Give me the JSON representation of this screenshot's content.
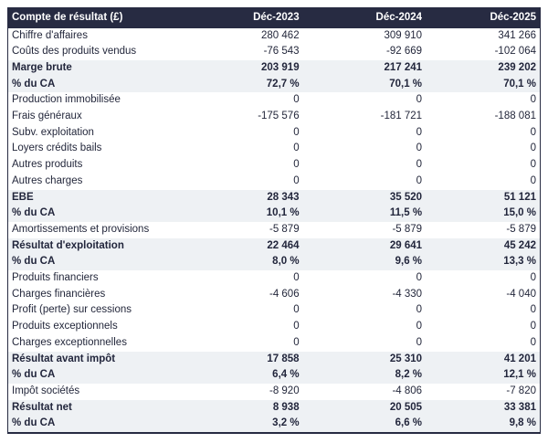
{
  "chart_data": {
    "type": "table",
    "title": "Compte de résultat (£)",
    "columns": [
      "Déc-2023",
      "Déc-2024",
      "Déc-2025"
    ],
    "rows": [
      {
        "label": "Chiffre d'affaires",
        "values": [
          "280 462",
          "309 910",
          "341 266"
        ],
        "emphasis": "normal"
      },
      {
        "label": "Coûts des produits vendus",
        "values": [
          "-76 543",
          "-92 669",
          "-102 064"
        ],
        "emphasis": "normal"
      },
      {
        "label": "Marge brute",
        "values": [
          "203 919",
          "217 241",
          "239 202"
        ],
        "emphasis": "subtotal"
      },
      {
        "label": "% du CA",
        "values": [
          "72,7 %",
          "70,1 %",
          "70,1 %"
        ],
        "emphasis": "subtotal"
      },
      {
        "label": "Production immobilisée",
        "values": [
          "0",
          "0",
          "0"
        ],
        "emphasis": "normal"
      },
      {
        "label": "Frais généraux",
        "values": [
          "-175 576",
          "-181 721",
          "-188 081"
        ],
        "emphasis": "normal"
      },
      {
        "label": "Subv. exploitation",
        "values": [
          "0",
          "0",
          "0"
        ],
        "emphasis": "normal"
      },
      {
        "label": "Loyers crédits bails",
        "values": [
          "0",
          "0",
          "0"
        ],
        "emphasis": "normal"
      },
      {
        "label": "Autres produits",
        "values": [
          "0",
          "0",
          "0"
        ],
        "emphasis": "normal"
      },
      {
        "label": "Autres charges",
        "values": [
          "0",
          "0",
          "0"
        ],
        "emphasis": "normal"
      },
      {
        "label": "EBE",
        "values": [
          "28 343",
          "35 520",
          "51 121"
        ],
        "emphasis": "subtotal"
      },
      {
        "label": "% du CA",
        "values": [
          "10,1 %",
          "11,5 %",
          "15,0 %"
        ],
        "emphasis": "subtotal"
      },
      {
        "label": "Amortissements et provisions",
        "values": [
          "-5 879",
          "-5 879",
          "-5 879"
        ],
        "emphasis": "normal"
      },
      {
        "label": "Résultat d'exploitation",
        "values": [
          "22 464",
          "29 641",
          "45 242"
        ],
        "emphasis": "subtotal"
      },
      {
        "label": "% du CA",
        "values": [
          "8,0 %",
          "9,6 %",
          "13,3 %"
        ],
        "emphasis": "subtotal"
      },
      {
        "label": "Produits financiers",
        "values": [
          "0",
          "0",
          "0"
        ],
        "emphasis": "normal"
      },
      {
        "label": "Charges financières",
        "values": [
          "-4 606",
          "-4 330",
          "-4 040"
        ],
        "emphasis": "normal"
      },
      {
        "label": "Profit (perte) sur cessions",
        "values": [
          "0",
          "0",
          "0"
        ],
        "emphasis": "normal"
      },
      {
        "label": "Produits exceptionnels",
        "values": [
          "0",
          "0",
          "0"
        ],
        "emphasis": "normal"
      },
      {
        "label": "Charges exceptionnelles",
        "values": [
          "0",
          "0",
          "0"
        ],
        "emphasis": "normal"
      },
      {
        "label": "Résultat avant impôt",
        "values": [
          "17 858",
          "25 310",
          "41 201"
        ],
        "emphasis": "subtotal"
      },
      {
        "label": "% du CA",
        "values": [
          "6,4 %",
          "8,2 %",
          "12,1 %"
        ],
        "emphasis": "subtotal"
      },
      {
        "label": "Impôt sociétés",
        "values": [
          "-8 920",
          "-4 806",
          "-7 820"
        ],
        "emphasis": "normal"
      },
      {
        "label": "Résultat net",
        "values": [
          "8 938",
          "20 505",
          "33 381"
        ],
        "emphasis": "subtotal"
      },
      {
        "label": "% du CA",
        "values": [
          "3,2 %",
          "6,6 %",
          "9,8 %"
        ],
        "emphasis": "subtotal"
      }
    ],
    "layout": {
      "legend": "none",
      "grid": "none",
      "header_alignment": {
        "title": "left",
        "columns": "right"
      },
      "value_alignment": "right"
    }
  },
  "colors": {
    "header_bg": "#272b42",
    "header_text": "#ffffff",
    "subtotal_row_bg": "#eef1f4",
    "body_text": "#23273b",
    "table_border": "#272b42",
    "page_bg": "#ffffff"
  }
}
